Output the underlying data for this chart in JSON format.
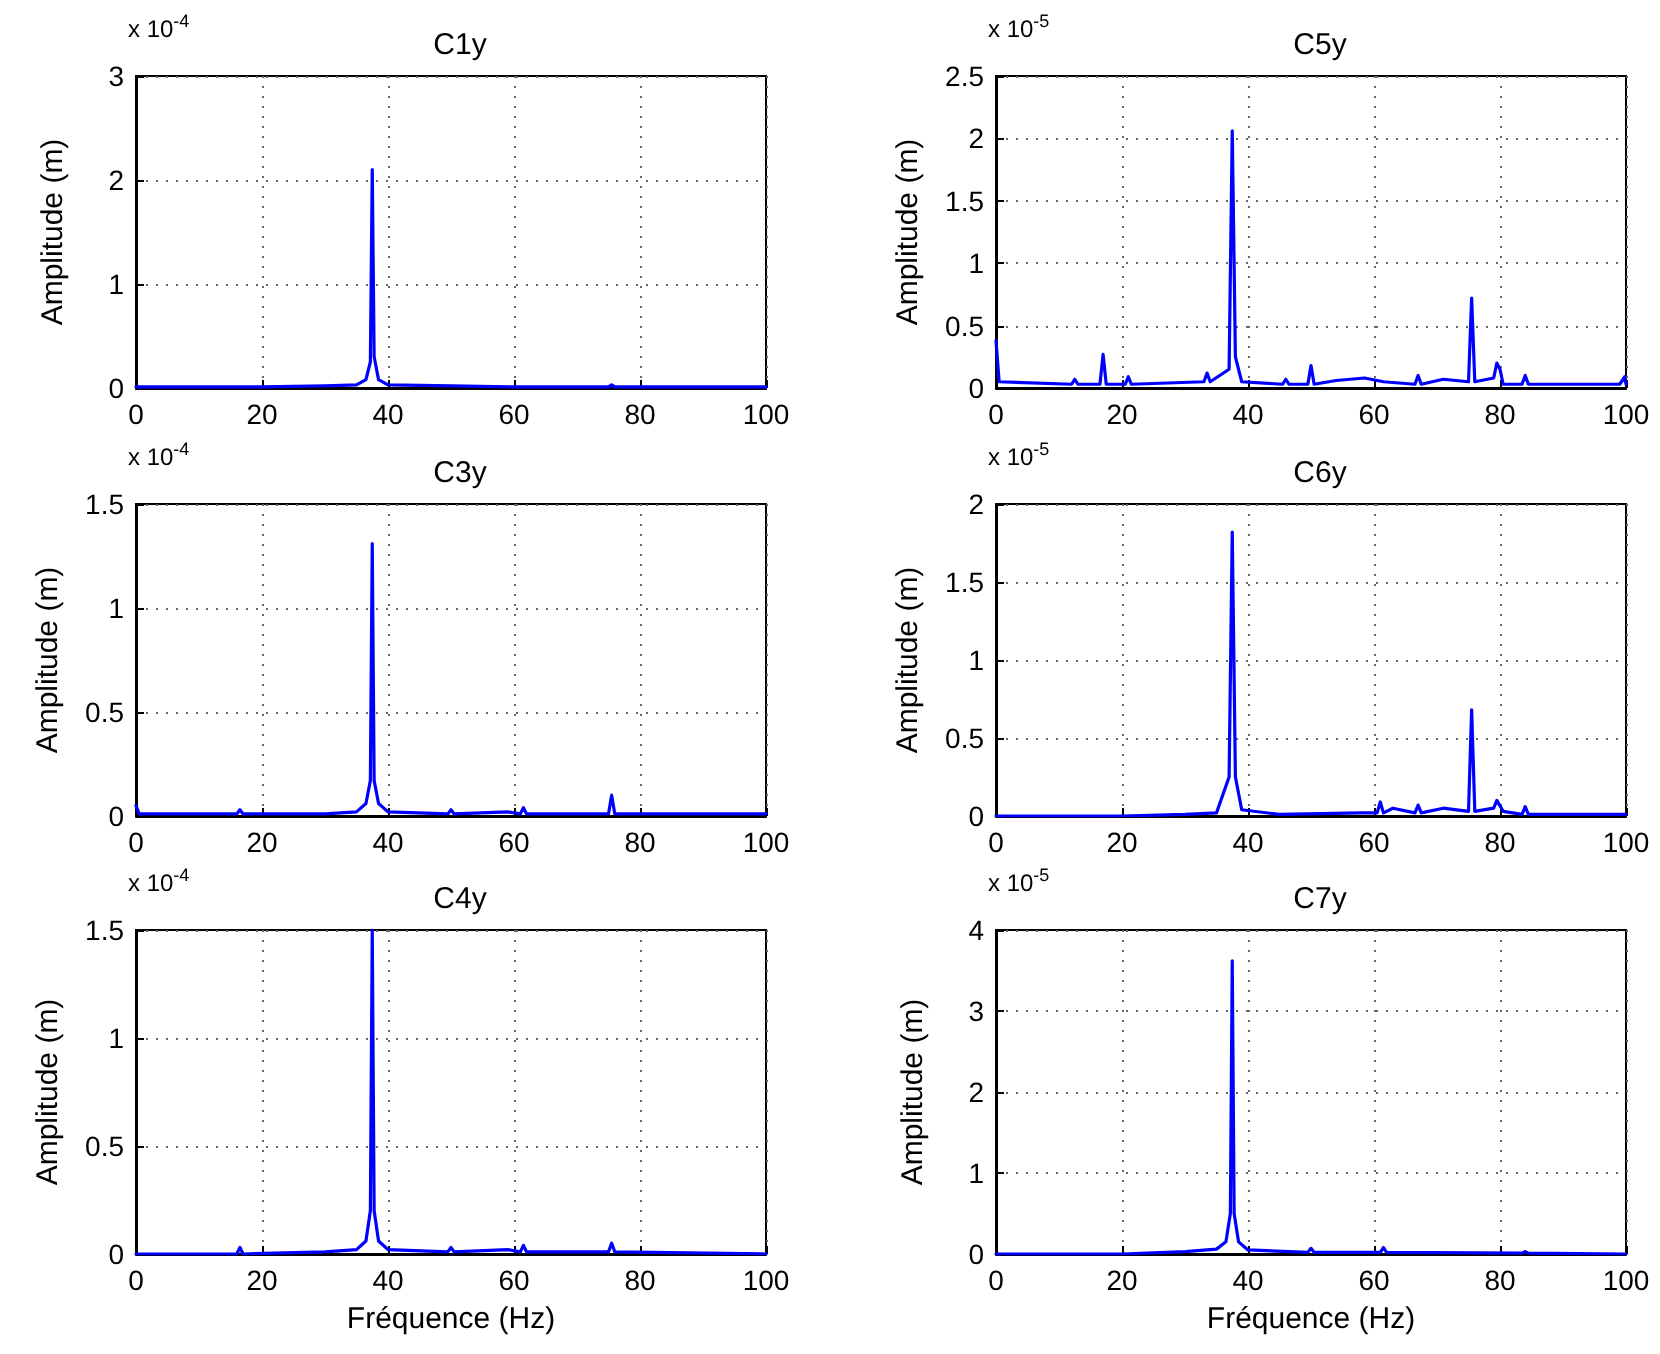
{
  "chart_data": [
    {
      "type": "line",
      "title": "C1y",
      "ylabel": "Amplitude (m)",
      "annotations": [
        "x 10$^{-4}$"
      ],
      "color": "#0000ff",
      "xlim": [
        0,
        100
      ],
      "ylim": [
        0,
        3
      ],
      "xticks": [
        0,
        20,
        40,
        60,
        80,
        100
      ],
      "yticks": [
        0,
        1,
        2,
        3
      ],
      "grid": true,
      "x": [
        0,
        10,
        20,
        30,
        35,
        36.5,
        37.2,
        37.5,
        37.8,
        38.5,
        40,
        50,
        60,
        75,
        75.5,
        76,
        90,
        100
      ],
      "values": [
        0.01,
        0.01,
        0.01,
        0.02,
        0.03,
        0.08,
        0.25,
        2.1,
        0.3,
        0.08,
        0.03,
        0.02,
        0.01,
        0.01,
        0.03,
        0.01,
        0.01,
        0.01
      ]
    },
    {
      "type": "line",
      "title": "C5y",
      "ylabel": "Amplitude (m)",
      "annotations": [
        "x 10$^{-5}$"
      ],
      "color": "#0000ff",
      "xlim": [
        0,
        100
      ],
      "ylim": [
        0,
        2.5
      ],
      "xticks": [
        0,
        20,
        40,
        60,
        80,
        100
      ],
      "yticks": [
        0,
        0.5,
        1,
        1.5,
        2,
        2.5
      ],
      "grid": true,
      "x": [
        0,
        0.5,
        12,
        12.5,
        13,
        16.5,
        17,
        17.5,
        20.5,
        21,
        21.5,
        33,
        33.5,
        34,
        37,
        37.5,
        38,
        39,
        45.5,
        46,
        46.5,
        49.5,
        50,
        50.5,
        54,
        58.5,
        61.5,
        66.5,
        67,
        67.5,
        71,
        75,
        75.5,
        76,
        79,
        79.5,
        80,
        80.5,
        83.5,
        84,
        84.5,
        99,
        99.8,
        100
      ],
      "values": [
        0.38,
        0.05,
        0.03,
        0.07,
        0.03,
        0.03,
        0.27,
        0.03,
        0.03,
        0.09,
        0.03,
        0.05,
        0.12,
        0.05,
        0.15,
        2.06,
        0.25,
        0.05,
        0.03,
        0.07,
        0.03,
        0.03,
        0.18,
        0.03,
        0.06,
        0.08,
        0.05,
        0.03,
        0.1,
        0.03,
        0.07,
        0.05,
        0.72,
        0.05,
        0.08,
        0.2,
        0.15,
        0.03,
        0.03,
        0.1,
        0.03,
        0.03,
        0.09,
        0.03
      ]
    },
    {
      "type": "line",
      "title": "C3y",
      "ylabel": "Amplitude (m)",
      "annotations": [
        "x 10$^{-4}$"
      ],
      "color": "#0000ff",
      "xlim": [
        0,
        100
      ],
      "ylim": [
        0,
        1.5
      ],
      "xticks": [
        0,
        20,
        40,
        60,
        80,
        100
      ],
      "yticks": [
        0,
        0.5,
        1,
        1.5
      ],
      "grid": true,
      "x": [
        0,
        0.5,
        16,
        16.5,
        17,
        30,
        35,
        36.5,
        37.2,
        37.5,
        37.8,
        38.5,
        40,
        49.5,
        50,
        50.5,
        59,
        61,
        61.5,
        62,
        75,
        75.5,
        76,
        100
      ],
      "values": [
        0.05,
        0.01,
        0.01,
        0.03,
        0.01,
        0.01,
        0.02,
        0.06,
        0.17,
        1.31,
        0.17,
        0.06,
        0.02,
        0.01,
        0.03,
        0.01,
        0.02,
        0.01,
        0.04,
        0.01,
        0.01,
        0.1,
        0.01,
        0.01
      ]
    },
    {
      "type": "line",
      "title": "C6y",
      "ylabel": "Amplitude (m)",
      "annotations": [
        "x 10$^{-5}$"
      ],
      "color": "#0000ff",
      "xlim": [
        0,
        100
      ],
      "ylim": [
        0,
        2
      ],
      "xticks": [
        0,
        20,
        40,
        60,
        80,
        100
      ],
      "yticks": [
        0,
        0.5,
        1,
        1.5,
        2
      ],
      "grid": true,
      "x": [
        0,
        20,
        30,
        35,
        37,
        37.5,
        38,
        39,
        45,
        58,
        60.5,
        61,
        61.5,
        63,
        66.5,
        67,
        67.5,
        71,
        75,
        75.5,
        76,
        79,
        79.5,
        80.5,
        83.5,
        84,
        84.5,
        100
      ],
      "values": [
        0,
        0,
        0.01,
        0.02,
        0.25,
        1.82,
        0.25,
        0.04,
        0.01,
        0.02,
        0.02,
        0.09,
        0.02,
        0.05,
        0.02,
        0.07,
        0.02,
        0.05,
        0.03,
        0.68,
        0.03,
        0.05,
        0.1,
        0.03,
        0.01,
        0.06,
        0.01,
        0.01
      ]
    },
    {
      "type": "line",
      "title": "C4y",
      "xlabel": "Fréquence (Hz)",
      "ylabel": "Amplitude (m)",
      "annotations": [
        "x 10$^{-4}$"
      ],
      "color": "#0000ff",
      "xlim": [
        0,
        100
      ],
      "ylim": [
        0,
        1.5
      ],
      "xticks": [
        0,
        20,
        40,
        60,
        80,
        100
      ],
      "yticks": [
        0,
        0.5,
        1,
        1.5
      ],
      "grid": true,
      "x": [
        0,
        16,
        16.5,
        17,
        30,
        35,
        36.5,
        37.2,
        37.5,
        37.8,
        38.5,
        40,
        49.5,
        50,
        50.5,
        59,
        61,
        61.5,
        62,
        75,
        75.5,
        76,
        100
      ],
      "values": [
        0,
        0,
        0.03,
        0,
        0.01,
        0.02,
        0.06,
        0.2,
        1.5,
        0.2,
        0.06,
        0.02,
        0.01,
        0.03,
        0.01,
        0.02,
        0.01,
        0.04,
        0.01,
        0.01,
        0.05,
        0.01,
        0
      ]
    },
    {
      "type": "line",
      "title": "C7y",
      "xlabel": "Fréquence (Hz)",
      "ylabel": "Amplitude (m)",
      "annotations": [
        "x 10$^{-5}$"
      ],
      "color": "#0000ff",
      "xlim": [
        0,
        100
      ],
      "ylim": [
        0,
        4
      ],
      "xticks": [
        0,
        20,
        40,
        60,
        80,
        100
      ],
      "yticks": [
        0,
        1,
        2,
        3,
        4
      ],
      "grid": true,
      "x": [
        0,
        20,
        30,
        35,
        36.5,
        37.2,
        37.5,
        37.8,
        38.5,
        40,
        49.5,
        50,
        50.5,
        61,
        61.5,
        62,
        83.5,
        84,
        84.5,
        100
      ],
      "values": [
        0,
        0,
        0.03,
        0.06,
        0.15,
        0.5,
        3.62,
        0.5,
        0.15,
        0.05,
        0.02,
        0.07,
        0.02,
        0.02,
        0.08,
        0.02,
        0.01,
        0.03,
        0.01,
        0
      ]
    }
  ]
}
